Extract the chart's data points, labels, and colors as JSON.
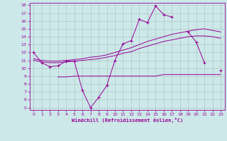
{
  "x_values": [
    0,
    1,
    2,
    3,
    4,
    5,
    6,
    7,
    8,
    9,
    10,
    11,
    12,
    13,
    14,
    15,
    16,
    17,
    18,
    19,
    20,
    21,
    22,
    23
  ],
  "line_windchill": [
    12.0,
    10.7,
    10.2,
    10.3,
    10.9,
    10.9,
    7.2,
    5.0,
    6.3,
    7.8,
    11.0,
    13.1,
    13.5,
    16.2,
    15.8,
    17.9,
    16.8,
    16.5,
    null,
    14.6,
    13.3,
    10.7,
    null,
    9.7
  ],
  "line_upper": [
    11.2,
    11.0,
    10.9,
    10.9,
    11.0,
    11.1,
    11.2,
    11.4,
    11.5,
    11.7,
    12.0,
    12.3,
    12.6,
    13.0,
    13.4,
    13.7,
    14.0,
    14.3,
    14.5,
    14.7,
    14.9,
    15.0,
    14.8,
    14.6
  ],
  "line_middle": [
    11.0,
    10.8,
    10.7,
    10.7,
    10.8,
    10.9,
    11.0,
    11.1,
    11.2,
    11.4,
    11.6,
    11.9,
    12.1,
    12.5,
    12.8,
    13.1,
    13.4,
    13.6,
    13.8,
    14.0,
    14.1,
    14.1,
    14.0,
    13.8
  ],
  "line_bottom": [
    null,
    null,
    null,
    8.9,
    8.9,
    9.0,
    9.0,
    9.0,
    9.0,
    9.0,
    9.0,
    9.0,
    9.0,
    9.0,
    9.0,
    9.0,
    9.2,
    9.2,
    9.2,
    9.2,
    9.2,
    9.2,
    9.2,
    9.2
  ],
  "bg_color": "#cce8e8",
  "line_color": "#990099",
  "grid_color": "#b0c8c8",
  "xlabel": "Windchill (Refroidissement éolien,°C)",
  "ylim_min": 5,
  "ylim_max": 18,
  "xlim_min": 0,
  "xlim_max": 23,
  "yticks": [
    5,
    6,
    7,
    8,
    9,
    10,
    11,
    12,
    13,
    14,
    15,
    16,
    17,
    18
  ],
  "xticks": [
    0,
    1,
    2,
    3,
    4,
    5,
    6,
    7,
    8,
    9,
    10,
    11,
    12,
    13,
    14,
    15,
    16,
    17,
    18,
    19,
    20,
    21,
    22,
    23
  ]
}
